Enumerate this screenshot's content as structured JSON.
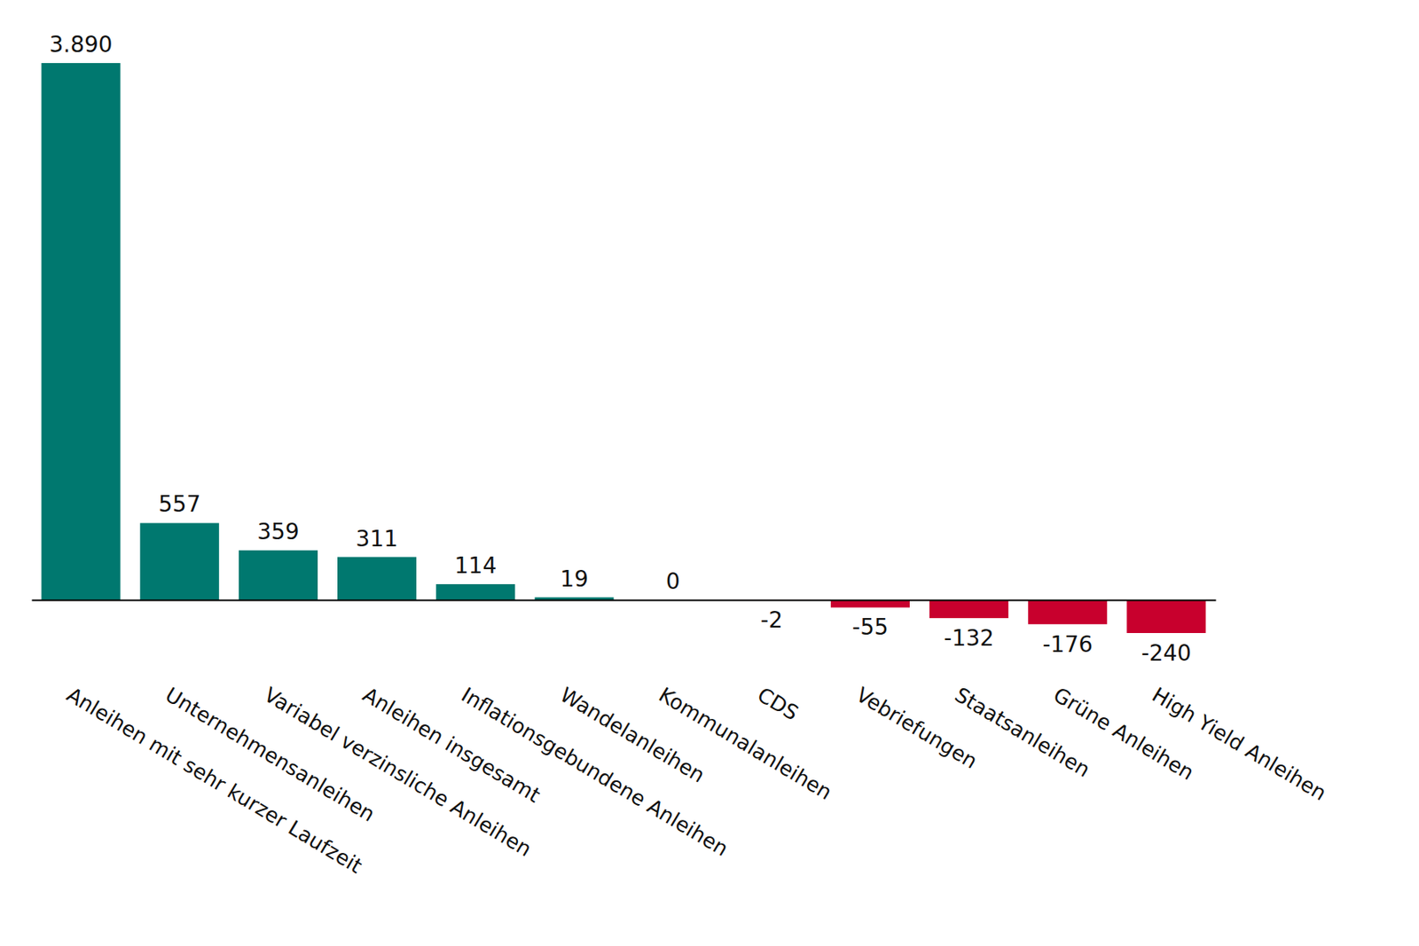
{
  "chart_data": {
    "type": "bar",
    "categories": [
      "Anleihen mit sehr kurzer Laufzeit",
      "Unternehmensanleihen",
      "Variabel verzinsliche Anleihen",
      "Anleihen insgesamt",
      "Inflationsgebundene Anleihen",
      "Wandelanleihen",
      "Kommunalanleihen",
      "CDS",
      "Vebriefungen",
      "Staatsanleihen",
      "Grüne Anleihen",
      "High Yield Anleihen"
    ],
    "values": [
      3890,
      557,
      359,
      311,
      114,
      19,
      0,
      -2,
      -55,
      -132,
      -176,
      -240
    ],
    "value_labels": [
      "3.890",
      "557",
      "359",
      "311",
      "114",
      "19",
      "0",
      "-2",
      "-55",
      "-132",
      "-176",
      "-240"
    ],
    "colors": [
      "#00786f",
      "#00786f",
      "#00786f",
      "#00786f",
      "#00786f",
      "#00786f",
      "#00786f",
      "#c8002d",
      "#c8002d",
      "#c8002d",
      "#c8002d",
      "#c8002d"
    ],
    "ylim": [
      -240,
      3890
    ],
    "data_labels": true,
    "tick_labels": "x",
    "grid": false
  }
}
